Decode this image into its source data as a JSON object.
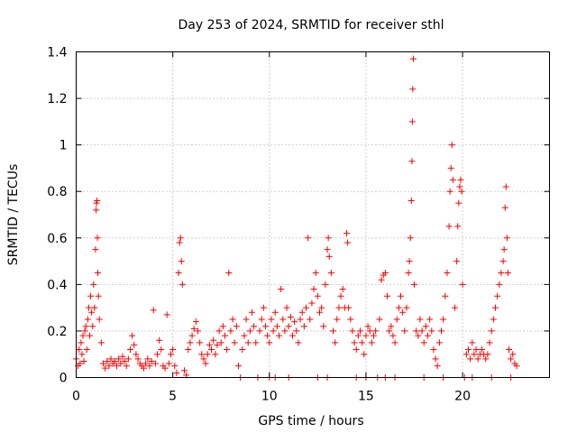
{
  "chart_data": {
    "type": "scatter",
    "title": "Day 253 of 2024, SRMTID for receiver sthl",
    "xlabel": "GPS time / hours",
    "ylabel": "SRMTID / TECUs",
    "xlim": [
      0,
      24.5
    ],
    "ylim": [
      0,
      1.4
    ],
    "xticks": [
      0,
      5,
      10,
      15,
      20
    ],
    "xtick_labels": [
      "0",
      "5",
      "10",
      "15",
      "20"
    ],
    "yticks": [
      0,
      0.2,
      0.4,
      0.6,
      0.8,
      1.0,
      1.2,
      1.4
    ],
    "ytick_labels": [
      "0",
      "0.2",
      "0.4",
      "0.6",
      "0.8",
      "1",
      "1.2",
      "1.4"
    ],
    "grid": true,
    "marker": "+",
    "series": [
      {
        "name": "SRMTID",
        "color": "#ff0000",
        "points": [
          [
            0.0,
            0.08
          ],
          [
            0.1,
            0.05
          ],
          [
            0.15,
            0.12
          ],
          [
            0.2,
            0.06
          ],
          [
            0.25,
            0.15
          ],
          [
            0.3,
            0.1
          ],
          [
            0.35,
            0.18
          ],
          [
            0.4,
            0.07
          ],
          [
            0.45,
            0.2
          ],
          [
            0.5,
            0.22
          ],
          [
            0.55,
            0.12
          ],
          [
            0.6,
            0.25
          ],
          [
            0.65,
            0.3
          ],
          [
            0.7,
            0.18
          ],
          [
            0.75,
            0.35
          ],
          [
            0.8,
            0.28
          ],
          [
            0.85,
            0.22
          ],
          [
            0.9,
            0.4
          ],
          [
            0.95,
            0.3
          ],
          [
            1.0,
            0.55
          ],
          [
            1.03,
            0.72
          ],
          [
            1.05,
            0.75
          ],
          [
            1.08,
            0.76
          ],
          [
            1.1,
            0.6
          ],
          [
            1.12,
            0.45
          ],
          [
            1.15,
            0.35
          ],
          [
            1.2,
            0.25
          ],
          [
            1.3,
            0.15
          ],
          [
            1.4,
            0.06
          ],
          [
            1.5,
            0.04
          ],
          [
            1.6,
            0.07
          ],
          [
            1.7,
            0.05
          ],
          [
            1.8,
            0.08
          ],
          [
            1.9,
            0.06
          ],
          [
            2.0,
            0.07
          ],
          [
            2.1,
            0.05
          ],
          [
            2.2,
            0.08
          ],
          [
            2.3,
            0.06
          ],
          [
            2.4,
            0.09
          ],
          [
            2.5,
            0.07
          ],
          [
            2.6,
            0.05
          ],
          [
            2.7,
            0.08
          ],
          [
            2.8,
            0.12
          ],
          [
            2.9,
            0.18
          ],
          [
            3.0,
            0.14
          ],
          [
            3.1,
            0.1
          ],
          [
            3.2,
            0.08
          ],
          [
            3.3,
            0.06
          ],
          [
            3.4,
            0.05
          ],
          [
            3.5,
            0.04
          ],
          [
            3.6,
            0.06
          ],
          [
            3.7,
            0.08
          ],
          [
            3.8,
            0.05
          ],
          [
            3.9,
            0.07
          ],
          [
            4.0,
            0.29
          ],
          [
            4.1,
            0.06
          ],
          [
            4.2,
            0.1
          ],
          [
            4.3,
            0.16
          ],
          [
            4.4,
            0.12
          ],
          [
            4.5,
            0.05
          ],
          [
            4.6,
            0.04
          ],
          [
            4.7,
            0.27
          ],
          [
            4.8,
            0.06
          ],
          [
            4.9,
            0.1
          ],
          [
            5.0,
            0.12
          ],
          [
            5.1,
            0.05
          ],
          [
            5.2,
            0.02
          ],
          [
            5.3,
            0.45
          ],
          [
            5.35,
            0.58
          ],
          [
            5.4,
            0.6
          ],
          [
            5.45,
            0.5
          ],
          [
            5.5,
            0.4
          ],
          [
            5.6,
            0.03
          ],
          [
            5.7,
            0.01
          ],
          [
            5.8,
            0.12
          ],
          [
            5.9,
            0.15
          ],
          [
            6.0,
            0.18
          ],
          [
            6.1,
            0.21
          ],
          [
            6.2,
            0.24
          ],
          [
            6.3,
            0.2
          ],
          [
            6.4,
            0.15
          ],
          [
            6.5,
            0.1
          ],
          [
            6.6,
            0.08
          ],
          [
            6.7,
            0.06
          ],
          [
            6.8,
            0.1
          ],
          [
            6.9,
            0.14
          ],
          [
            7.0,
            0.12
          ],
          [
            7.1,
            0.16
          ],
          [
            7.2,
            0.1
          ],
          [
            7.3,
            0.14
          ],
          [
            7.4,
            0.2
          ],
          [
            7.5,
            0.15
          ],
          [
            7.6,
            0.22
          ],
          [
            7.7,
            0.18
          ],
          [
            7.8,
            0.12
          ],
          [
            7.9,
            0.45
          ],
          [
            8.0,
            0.2
          ],
          [
            8.1,
            0.25
          ],
          [
            8.2,
            0.15
          ],
          [
            8.3,
            0.22
          ],
          [
            8.4,
            0.05
          ],
          [
            8.5,
            0.0
          ],
          [
            8.6,
            0.12
          ],
          [
            8.7,
            0.18
          ],
          [
            8.8,
            0.25
          ],
          [
            8.9,
            0.15
          ],
          [
            9.0,
            0.2
          ],
          [
            9.1,
            0.28
          ],
          [
            9.2,
            0.22
          ],
          [
            9.3,
            0.15
          ],
          [
            9.4,
            0.0
          ],
          [
            9.5,
            0.2
          ],
          [
            9.6,
            0.25
          ],
          [
            9.7,
            0.3
          ],
          [
            9.8,
            0.22
          ],
          [
            9.9,
            0.18
          ],
          [
            10.0,
            0.15
          ],
          [
            10.1,
            0.25
          ],
          [
            10.2,
            0.2
          ],
          [
            10.3,
            0.28
          ],
          [
            10.4,
            0.22
          ],
          [
            10.5,
            0.18
          ],
          [
            10.6,
            0.38
          ],
          [
            10.7,
            0.25
          ],
          [
            10.8,
            0.2
          ],
          [
            10.9,
            0.3
          ],
          [
            11.0,
            0.22
          ],
          [
            11.1,
            0.26
          ],
          [
            11.2,
            0.18
          ],
          [
            11.3,
            0.24
          ],
          [
            11.4,
            0.2
          ],
          [
            11.5,
            0.15
          ],
          [
            11.6,
            0.25
          ],
          [
            11.7,
            0.28
          ],
          [
            11.8,
            0.22
          ],
          [
            11.9,
            0.3
          ],
          [
            12.0,
            0.6
          ],
          [
            12.1,
            0.25
          ],
          [
            12.2,
            0.32
          ],
          [
            12.3,
            0.38
          ],
          [
            12.4,
            0.45
          ],
          [
            12.5,
            0.35
          ],
          [
            12.6,
            0.28
          ],
          [
            12.7,
            0.3
          ],
          [
            12.8,
            0.22
          ],
          [
            12.9,
            0.4
          ],
          [
            13.0,
            0.55
          ],
          [
            13.05,
            0.6
          ],
          [
            13.1,
            0.52
          ],
          [
            13.2,
            0.45
          ],
          [
            13.3,
            0.2
          ],
          [
            13.4,
            0.15
          ],
          [
            13.5,
            0.25
          ],
          [
            13.6,
            0.3
          ],
          [
            13.7,
            0.35
          ],
          [
            13.8,
            0.38
          ],
          [
            13.9,
            0.3
          ],
          [
            14.0,
            0.62
          ],
          [
            14.05,
            0.58
          ],
          [
            14.1,
            0.3
          ],
          [
            14.2,
            0.25
          ],
          [
            14.3,
            0.2
          ],
          [
            14.4,
            0.15
          ],
          [
            14.5,
            0.12
          ],
          [
            14.6,
            0.18
          ],
          [
            14.7,
            0.2
          ],
          [
            14.8,
            0.15
          ],
          [
            14.9,
            0.1
          ],
          [
            15.0,
            0.18
          ],
          [
            15.1,
            0.22
          ],
          [
            15.2,
            0.2
          ],
          [
            15.3,
            0.15
          ],
          [
            15.4,
            0.18
          ],
          [
            15.5,
            0.2
          ],
          [
            15.6,
            0.0
          ],
          [
            15.7,
            0.25
          ],
          [
            15.8,
            0.42
          ],
          [
            15.9,
            0.44
          ],
          [
            16.0,
            0.45
          ],
          [
            16.1,
            0.35
          ],
          [
            16.2,
            0.2
          ],
          [
            16.3,
            0.22
          ],
          [
            16.4,
            0.18
          ],
          [
            16.5,
            0.15
          ],
          [
            16.6,
            0.25
          ],
          [
            16.7,
            0.3
          ],
          [
            16.8,
            0.35
          ],
          [
            16.9,
            0.28
          ],
          [
            17.0,
            0.2
          ],
          [
            17.1,
            0.3
          ],
          [
            17.2,
            0.45
          ],
          [
            17.25,
            0.5
          ],
          [
            17.3,
            0.6
          ],
          [
            17.35,
            0.76
          ],
          [
            17.38,
            0.93
          ],
          [
            17.4,
            1.1
          ],
          [
            17.42,
            1.24
          ],
          [
            17.45,
            1.37
          ],
          [
            17.5,
            0.4
          ],
          [
            17.6,
            0.2
          ],
          [
            17.7,
            0.18
          ],
          [
            17.8,
            0.25
          ],
          [
            17.9,
            0.2
          ],
          [
            18.0,
            0.15
          ],
          [
            18.1,
            0.22
          ],
          [
            18.2,
            0.18
          ],
          [
            18.3,
            0.25
          ],
          [
            18.4,
            0.2
          ],
          [
            18.5,
            0.12
          ],
          [
            18.6,
            0.08
          ],
          [
            18.7,
            0.05
          ],
          [
            18.8,
            0.15
          ],
          [
            18.9,
            0.2
          ],
          [
            19.0,
            0.25
          ],
          [
            19.1,
            0.35
          ],
          [
            19.2,
            0.45
          ],
          [
            19.3,
            0.65
          ],
          [
            19.35,
            0.8
          ],
          [
            19.4,
            0.9
          ],
          [
            19.45,
            1.0
          ],
          [
            19.5,
            0.85
          ],
          [
            19.6,
            0.3
          ],
          [
            19.7,
            0.5
          ],
          [
            19.75,
            0.65
          ],
          [
            19.8,
            0.75
          ],
          [
            19.85,
            0.82
          ],
          [
            19.9,
            0.85
          ],
          [
            19.95,
            0.8
          ],
          [
            20.0,
            0.4
          ],
          [
            20.1,
            0.0
          ],
          [
            20.2,
            0.1
          ],
          [
            20.3,
            0.12
          ],
          [
            20.4,
            0.08
          ],
          [
            20.5,
            0.15
          ],
          [
            20.6,
            0.1
          ],
          [
            20.7,
            0.12
          ],
          [
            20.8,
            0.08
          ],
          [
            20.9,
            0.1
          ],
          [
            21.0,
            0.12
          ],
          [
            21.1,
            0.1
          ],
          [
            21.2,
            0.08
          ],
          [
            21.3,
            0.1
          ],
          [
            21.4,
            0.15
          ],
          [
            21.5,
            0.2
          ],
          [
            21.6,
            0.25
          ],
          [
            21.7,
            0.3
          ],
          [
            21.8,
            0.35
          ],
          [
            21.9,
            0.4
          ],
          [
            22.0,
            0.45
          ],
          [
            22.1,
            0.5
          ],
          [
            22.15,
            0.55
          ],
          [
            22.2,
            0.73
          ],
          [
            22.25,
            0.82
          ],
          [
            22.3,
            0.6
          ],
          [
            22.35,
            0.45
          ],
          [
            22.4,
            0.12
          ],
          [
            22.5,
            0.08
          ],
          [
            22.6,
            0.1
          ],
          [
            22.7,
            0.06
          ],
          [
            22.8,
            0.05
          ],
          [
            10.0,
            0.0
          ],
          [
            10.3,
            0.0
          ],
          [
            11.0,
            0.0
          ],
          [
            12.5,
            0.0
          ],
          [
            13.0,
            0.0
          ],
          [
            14.5,
            0.0
          ],
          [
            15.0,
            0.0
          ],
          [
            16.0,
            0.0
          ],
          [
            16.5,
            0.0
          ],
          [
            18.0,
            0.0
          ],
          [
            19.0,
            0.0
          ],
          [
            20.5,
            0.0
          ],
          [
            21.5,
            0.0
          ],
          [
            22.5,
            0.0
          ]
        ]
      }
    ]
  }
}
